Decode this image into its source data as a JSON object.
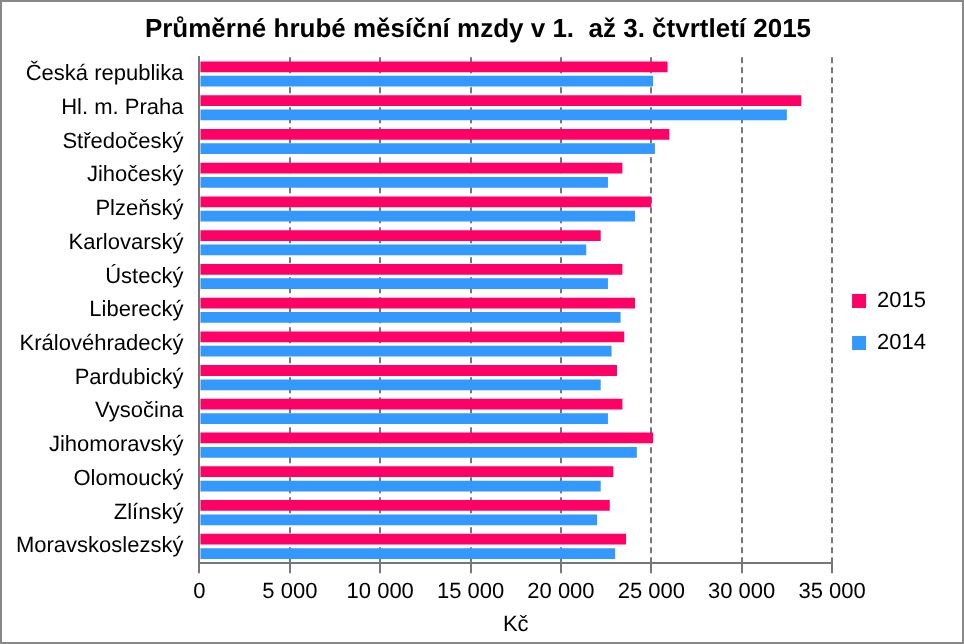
{
  "chart_data": {
    "type": "bar",
    "orientation": "horizontal",
    "title": "Průměrné hrubé měsíční mzdy v 1.  až 3. čtvrtletí 2015",
    "xlabel": "Kč",
    "categories": [
      "Česká republika",
      "Hl. m. Praha",
      "Středočeský",
      "Jihočeský",
      "Plzeňský",
      "Karlovarský",
      "Ústecký",
      "Liberecký",
      "Královéhradecký",
      "Pardubický",
      "Vysočina",
      "Jihomoravský",
      "Olomoucký",
      "Zlínský",
      "Moravskoslezský"
    ],
    "series": [
      {
        "name": "2015",
        "color": "#ff0066",
        "values": [
          25900,
          33300,
          26000,
          23400,
          25000,
          22200,
          23400,
          24100,
          23500,
          23100,
          23400,
          25100,
          22900,
          22700,
          23600
        ]
      },
      {
        "name": "2014",
        "color": "#3399ff",
        "values": [
          25100,
          32500,
          25200,
          22600,
          24100,
          21400,
          22600,
          23300,
          22800,
          22200,
          22600,
          24200,
          22200,
          22000,
          23000
        ]
      }
    ],
    "xlim": [
      0,
      35000
    ],
    "xticks": [
      {
        "value": 0,
        "label": "0"
      },
      {
        "value": 5000,
        "label": "5 000"
      },
      {
        "value": 10000,
        "label": "10 000"
      },
      {
        "value": 15000,
        "label": "15 000"
      },
      {
        "value": 20000,
        "label": "20 000"
      },
      {
        "value": 25000,
        "label": "25 000"
      },
      {
        "value": 30000,
        "label": "30 000"
      },
      {
        "value": 35000,
        "label": "35 000"
      }
    ],
    "grid": "x",
    "legend": "right"
  }
}
